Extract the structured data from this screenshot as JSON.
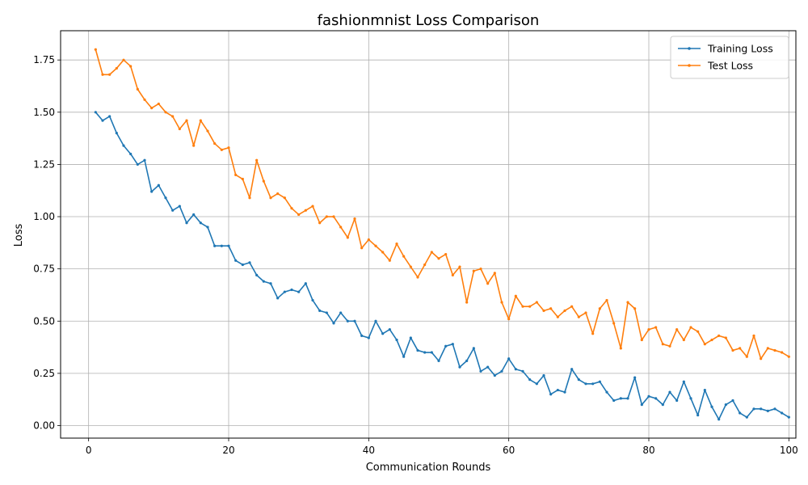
{
  "chart_data": {
    "type": "line",
    "title": "fashionmnist Loss Comparison",
    "xlabel": "Communication Rounds",
    "ylabel": "Loss",
    "xlim": [
      -4,
      101
    ],
    "ylim": [
      -0.06,
      1.89
    ],
    "xticks": [
      0,
      20,
      40,
      60,
      80,
      100
    ],
    "yticks": [
      0.0,
      0.25,
      0.5,
      0.75,
      1.0,
      1.25,
      1.5,
      1.75
    ],
    "ytick_labels": [
      "0.00",
      "0.25",
      "0.50",
      "0.75",
      "1.00",
      "1.25",
      "1.50",
      "1.75"
    ],
    "grid": true,
    "legend_position": "top-right",
    "series": [
      {
        "name": "Training Loss",
        "color": "#1f77b4",
        "x_start": 1,
        "values": [
          1.5,
          1.46,
          1.48,
          1.4,
          1.34,
          1.3,
          1.25,
          1.27,
          1.12,
          1.15,
          1.09,
          1.03,
          1.05,
          0.97,
          1.01,
          0.97,
          0.95,
          0.86,
          0.86,
          0.86,
          0.79,
          0.77,
          0.78,
          0.72,
          0.69,
          0.68,
          0.61,
          0.64,
          0.65,
          0.64,
          0.68,
          0.6,
          0.55,
          0.54,
          0.49,
          0.54,
          0.5,
          0.5,
          0.43,
          0.42,
          0.5,
          0.44,
          0.46,
          0.41,
          0.33,
          0.42,
          0.36,
          0.35,
          0.35,
          0.31,
          0.38,
          0.39,
          0.28,
          0.31,
          0.37,
          0.26,
          0.28,
          0.24,
          0.26,
          0.32,
          0.27,
          0.26,
          0.22,
          0.2,
          0.24,
          0.15,
          0.17,
          0.16,
          0.27,
          0.22,
          0.2,
          0.2,
          0.21,
          0.16,
          0.12,
          0.13,
          0.13,
          0.23,
          0.1,
          0.14,
          0.13,
          0.1,
          0.16,
          0.12,
          0.21,
          0.13,
          0.05,
          0.17,
          0.09,
          0.03,
          0.1,
          0.12,
          0.06,
          0.04,
          0.08,
          0.08,
          0.07,
          0.08,
          0.06,
          0.04
        ]
      },
      {
        "name": "Test Loss",
        "color": "#ff7f0e",
        "x_start": 1,
        "values": [
          1.8,
          1.68,
          1.68,
          1.71,
          1.75,
          1.72,
          1.61,
          1.56,
          1.52,
          1.54,
          1.5,
          1.48,
          1.42,
          1.46,
          1.34,
          1.46,
          1.41,
          1.35,
          1.32,
          1.33,
          1.2,
          1.18,
          1.09,
          1.27,
          1.17,
          1.09,
          1.11,
          1.09,
          1.04,
          1.01,
          1.03,
          1.05,
          0.97,
          1.0,
          1.0,
          0.95,
          0.9,
          0.99,
          0.85,
          0.89,
          0.86,
          0.83,
          0.79,
          0.87,
          0.81,
          0.76,
          0.71,
          0.77,
          0.83,
          0.8,
          0.82,
          0.72,
          0.76,
          0.59,
          0.74,
          0.75,
          0.68,
          0.73,
          0.59,
          0.51,
          0.62,
          0.57,
          0.57,
          0.59,
          0.55,
          0.56,
          0.52,
          0.55,
          0.57,
          0.52,
          0.54,
          0.44,
          0.56,
          0.6,
          0.49,
          0.37,
          0.59,
          0.56,
          0.41,
          0.46,
          0.47,
          0.39,
          0.38,
          0.46,
          0.41,
          0.47,
          0.45,
          0.39,
          0.41,
          0.43,
          0.42,
          0.36,
          0.37,
          0.33,
          0.43,
          0.32,
          0.37,
          0.36,
          0.35,
          0.33
        ]
      }
    ]
  }
}
